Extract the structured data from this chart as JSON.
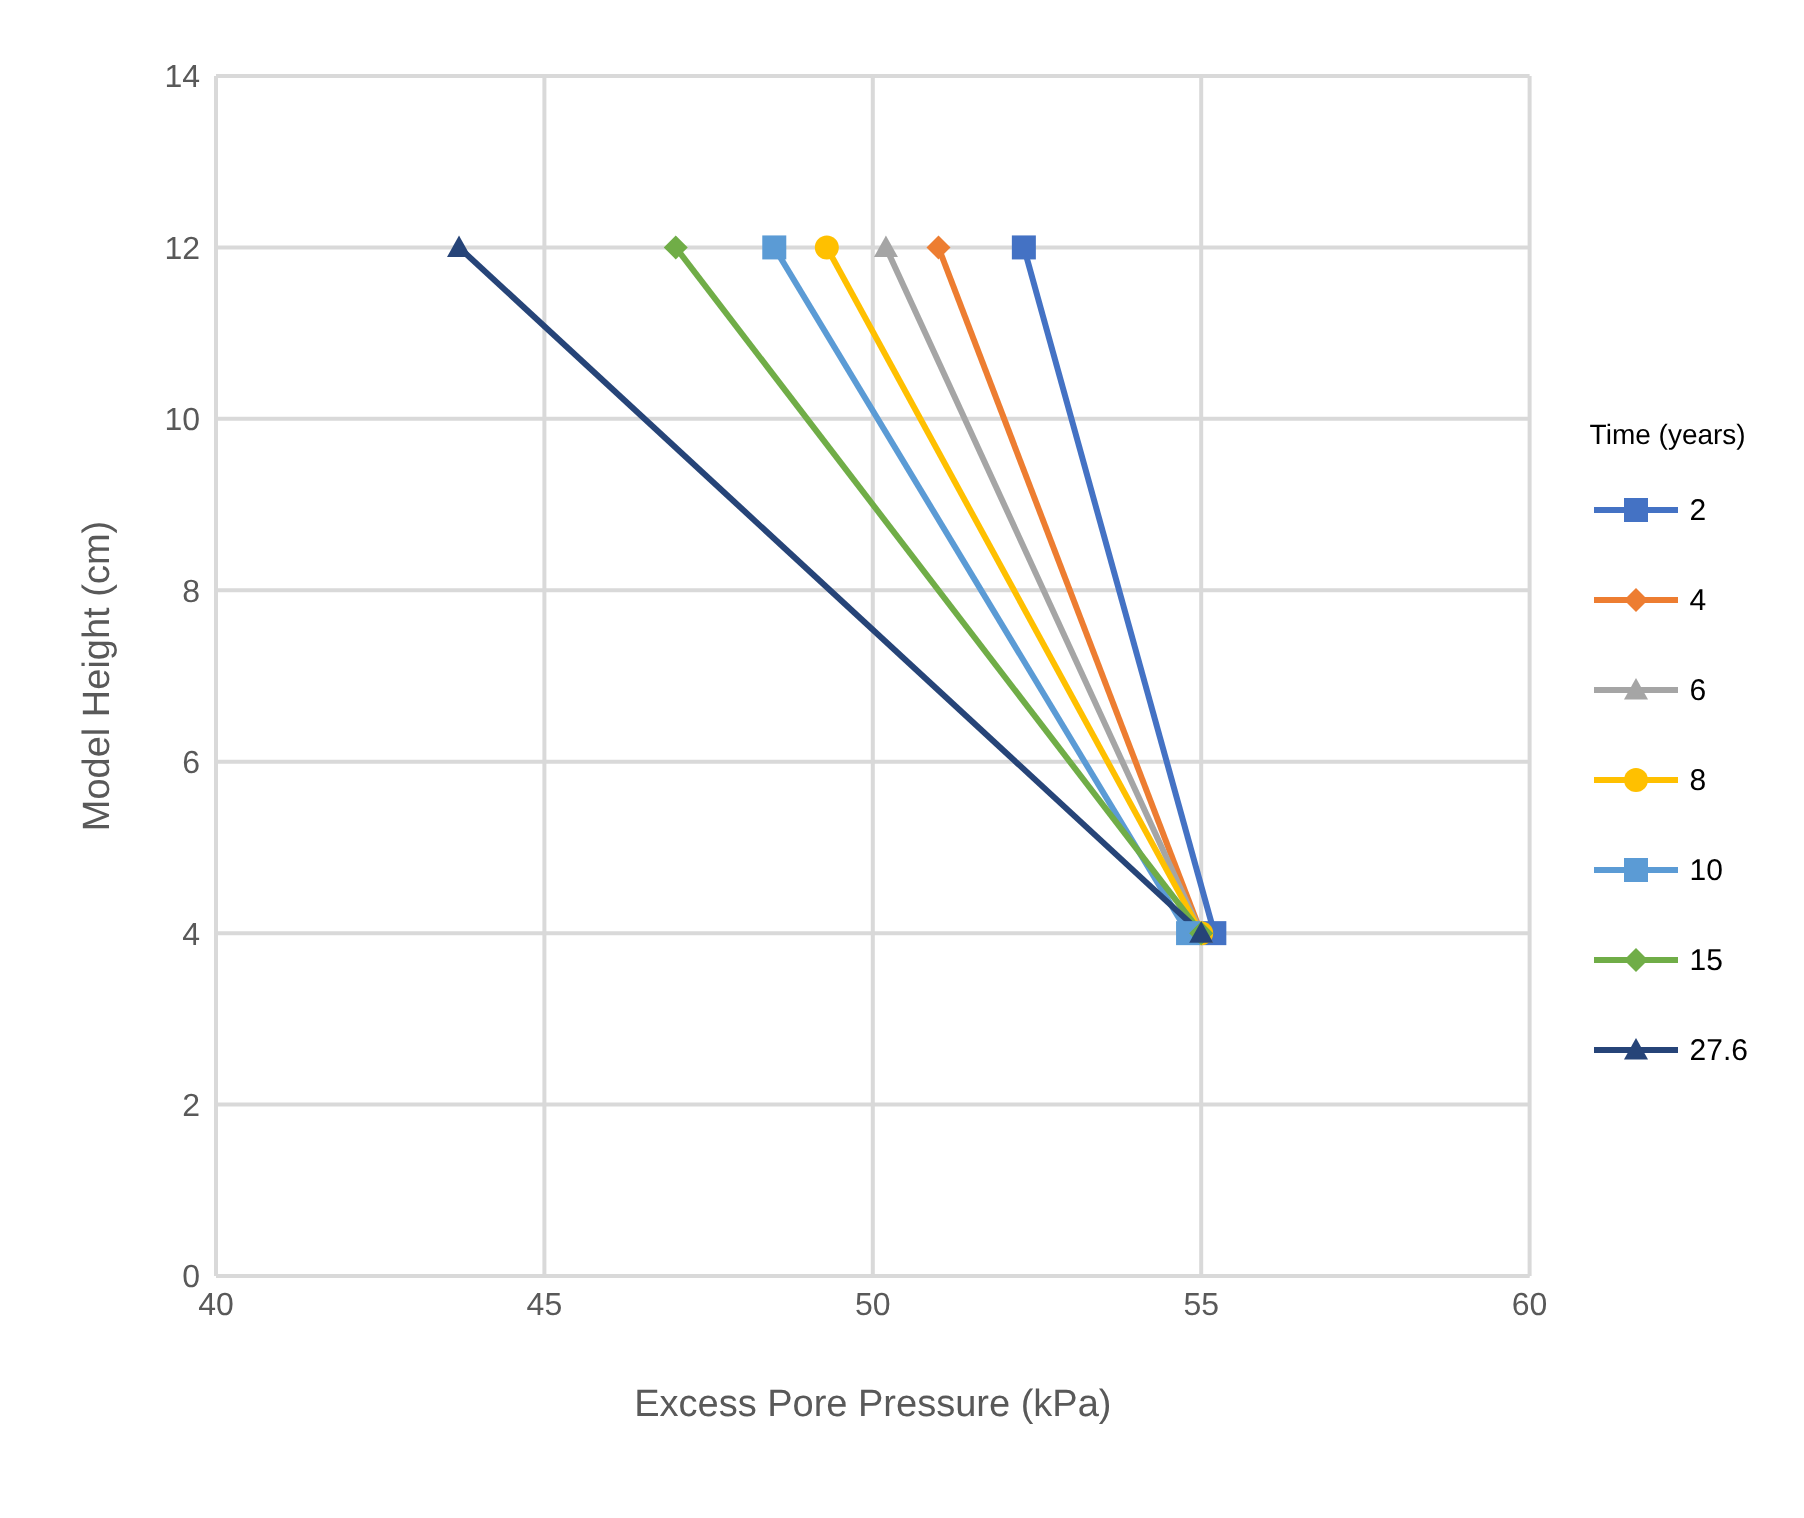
{
  "chart_data": {
    "type": "line",
    "xlabel": "Excess Pore Pressure (kPa)",
    "ylabel": "Model Height (cm)",
    "legend_title": "Time (years)",
    "legend": "right",
    "grid": true,
    "xlim": [
      40,
      60
    ],
    "xticks": [
      40,
      45,
      50,
      55,
      60
    ],
    "ylim": [
      0,
      14
    ],
    "yticks": [
      0,
      2,
      4,
      6,
      8,
      10,
      12,
      14
    ],
    "series": [
      {
        "name": "2",
        "color": "#4472c4",
        "marker": "square",
        "x": [
          52.3,
          55.2
        ],
        "values": [
          12,
          4
        ]
      },
      {
        "name": "4",
        "color": "#ed7d31",
        "marker": "diamond",
        "x": [
          51.0,
          55.0
        ],
        "values": [
          12,
          4
        ]
      },
      {
        "name": "6",
        "color": "#a5a5a5",
        "marker": "triangle",
        "x": [
          50.2,
          55.0
        ],
        "values": [
          12,
          4
        ]
      },
      {
        "name": "8",
        "color": "#ffc000",
        "marker": "circle",
        "x": [
          49.3,
          55.0
        ],
        "values": [
          12,
          4
        ]
      },
      {
        "name": "10",
        "color": "#5b9bd5",
        "marker": "square",
        "x": [
          48.5,
          54.8
        ],
        "values": [
          12,
          4
        ]
      },
      {
        "name": "15",
        "color": "#70ad47",
        "marker": "diamond",
        "x": [
          47.0,
          55.0
        ],
        "values": [
          12,
          4
        ]
      },
      {
        "name": "27.6",
        "color": "#264478",
        "marker": "triangle",
        "x": [
          43.7,
          55.0
        ],
        "values": [
          12,
          4
        ]
      }
    ]
  }
}
